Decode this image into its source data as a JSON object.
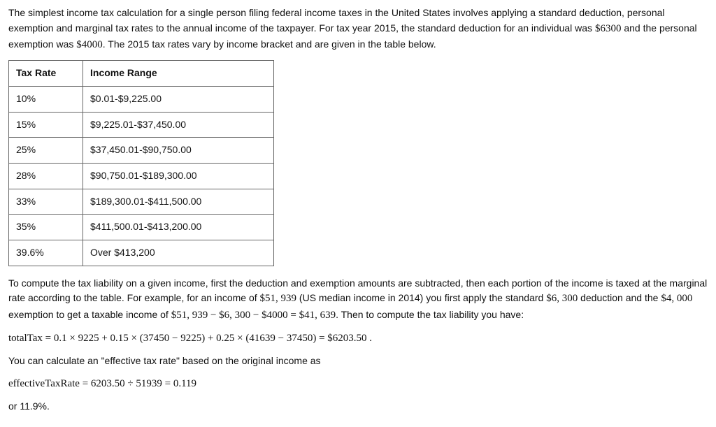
{
  "intro": {
    "p1a": "The simplest income tax calculation for a single person filing federal income taxes in the United States involves applying a standard deduction, personal exemption and marginal tax rates to the annual income of the taxpayer. For tax year 2015, the standard deduction for an individual was ",
    "p1_num1": "$6300",
    "p1b": " and the personal exemption was ",
    "p1_num2": "$4000",
    "p1c": ". The 2015 tax rates vary by income bracket and are given in the table below."
  },
  "table": {
    "headers": {
      "rate": "Tax Rate",
      "range": "Income Range"
    },
    "rows": [
      {
        "rate": "10%",
        "range": "$0.01-$9,225.00"
      },
      {
        "rate": "15%",
        "range": "$9,225.01-$37,450.00"
      },
      {
        "rate": "25%",
        "range": "$37,450.01-$90,750.00"
      },
      {
        "rate": "28%",
        "range": "$90,750.01-$189,300.00"
      },
      {
        "rate": "33%",
        "range": "$189,300.01-$411,500.00"
      },
      {
        "rate": "35%",
        "range": "$411,500.01-$413,200.00"
      },
      {
        "rate": "39.6%",
        "range": "Over $413,200"
      }
    ]
  },
  "explain": {
    "p2a": "To compute the tax liability on a given income, first the deduction and exemption amounts are subtracted, then each portion of the income is taxed at the marginal rate according to the table. For example, for an income of ",
    "p2_num1": "$51, 939",
    "p2b": " (US median income in 2014) you first apply the standard ",
    "p2_num2": "$6, 300",
    "p2c": " deduction and the ",
    "p2_num3": "$4, 000",
    "p2d": " exemption to get a taxable income of ",
    "p2_eq1": "$51, 939 − $6, 300 − $4000 = $41, 639",
    "p2e": ". Then to compute the tax liability you have:",
    "eq_line": "totalTax = 0.1 × 9225 + 0.15 × (37450 − 9225) + 0.25 × (41639 − 37450) = $6203.50 .",
    "p3": "You can calculate an \"effective tax rate\" based on the original income as",
    "eq_line2": "effectiveTaxRate = 6203.50 ÷ 51939 = 0.119",
    "p4": "or 11.9%."
  }
}
